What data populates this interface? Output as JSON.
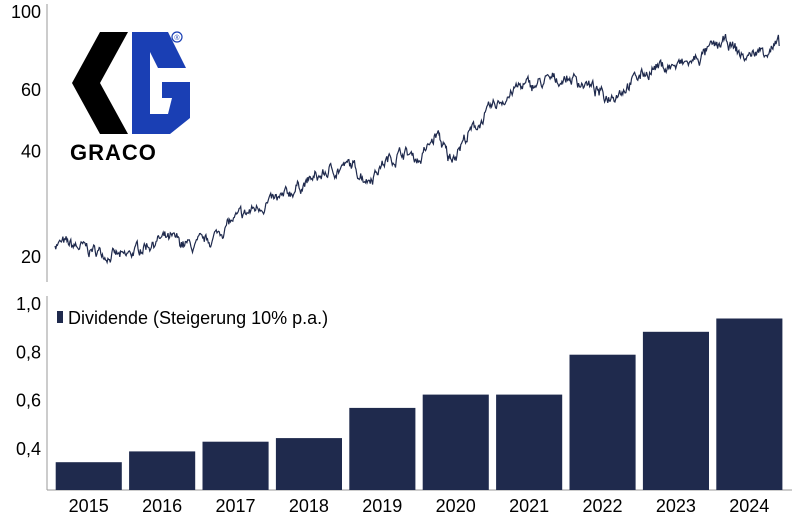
{
  "logo": {
    "wordmark": "GRACO",
    "registered_mark": "®",
    "colors": {
      "black": "#000000",
      "blue": "#1a3fb4"
    }
  },
  "chart_data": [
    {
      "type": "line",
      "title": "",
      "xlabel": "",
      "ylabel": "",
      "y_scale": "log",
      "y_ticks": [
        20,
        40,
        60,
        100
      ],
      "ylim": [
        17,
        100
      ],
      "xlim": [
        "2014-07-01",
        "2024-12-31"
      ],
      "grid": false,
      "line_color": "#1f2a4d",
      "series": [
        {
          "x": [
            "2014-07",
            "2014-10",
            "2015-01",
            "2015-04",
            "2015-07",
            "2015-10",
            "2016-01",
            "2016-04",
            "2016-07",
            "2016-10",
            "2017-01",
            "2017-04",
            "2017-07",
            "2017-10",
            "2018-01",
            "2018-04",
            "2018-07",
            "2018-10",
            "2019-01",
            "2019-04",
            "2019-07",
            "2019-10",
            "2020-01",
            "2020-03",
            "2020-06",
            "2020-09",
            "2020-12",
            "2021-03",
            "2021-06",
            "2021-09",
            "2021-12",
            "2022-03",
            "2022-06",
            "2022-09",
            "2022-12",
            "2023-03",
            "2023-06",
            "2023-09",
            "2023-12",
            "2024-03",
            "2024-06",
            "2024-09",
            "2024-12"
          ],
          "y": [
            22,
            21.5,
            21,
            20.5,
            19.8,
            21.5,
            22.5,
            22.2,
            21.3,
            22.5,
            25,
            26.5,
            28.5,
            29,
            32,
            33.5,
            35.5,
            36.5,
            33.5,
            37.5,
            40,
            38,
            45,
            38,
            44,
            50,
            56,
            61,
            62,
            64,
            65,
            62,
            57,
            61,
            66,
            70,
            70,
            72,
            78,
            82,
            74,
            78,
            80
          ]
        }
      ]
    },
    {
      "type": "bar",
      "title": "",
      "xlabel": "",
      "ylabel": "",
      "categories": [
        "2015",
        "2016",
        "2017",
        "2018",
        "2019",
        "2020",
        "2021",
        "2022",
        "2023",
        "2024"
      ],
      "y_ticks": [
        "0,4",
        "0,6",
        "0,8",
        "1,0"
      ],
      "ylim": [
        0.23,
        1.0
      ],
      "legend_position": "top-left",
      "grid": false,
      "bar_color": "#1f2a4d",
      "series": [
        {
          "name": "Dividende",
          "values": [
            0.345,
            0.39,
            0.43,
            0.445,
            0.57,
            0.625,
            0.625,
            0.79,
            0.885,
            0.94
          ]
        }
      ],
      "legend_label": "Dividende (Steigerung 10% p.a.)"
    }
  ]
}
